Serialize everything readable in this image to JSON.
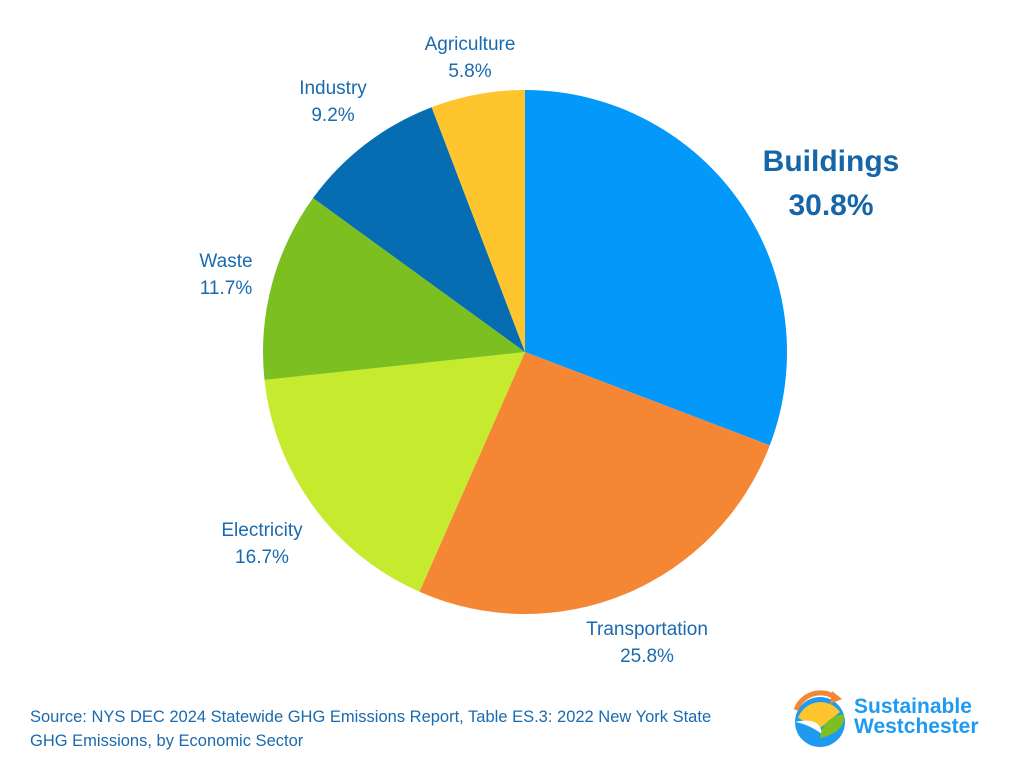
{
  "chart_data": {
    "type": "pie",
    "title": "",
    "categories": [
      "Buildings",
      "Transportation",
      "Electricity",
      "Waste",
      "Industry",
      "Agriculture"
    ],
    "values": [
      30.8,
      25.8,
      16.7,
      11.7,
      9.2,
      5.8
    ],
    "value_labels": [
      "30.8%",
      "25.8%",
      "16.7%",
      "11.7%",
      "9.2%",
      "5.8%"
    ],
    "colors": [
      "#0399fb",
      "#f58634",
      "#c6eb2e",
      "#7bbf21",
      "#066db3",
      "#fec52e"
    ],
    "start": "top",
    "direction": "clockwise"
  },
  "source": "Source: NYS DEC 2024 Statewide GHG Emissions Report, Table ES.3: 2022 New York State GHG Emissions, by Economic Sector",
  "logo": {
    "line1": "Sustainable",
    "line2": "Westchester"
  }
}
